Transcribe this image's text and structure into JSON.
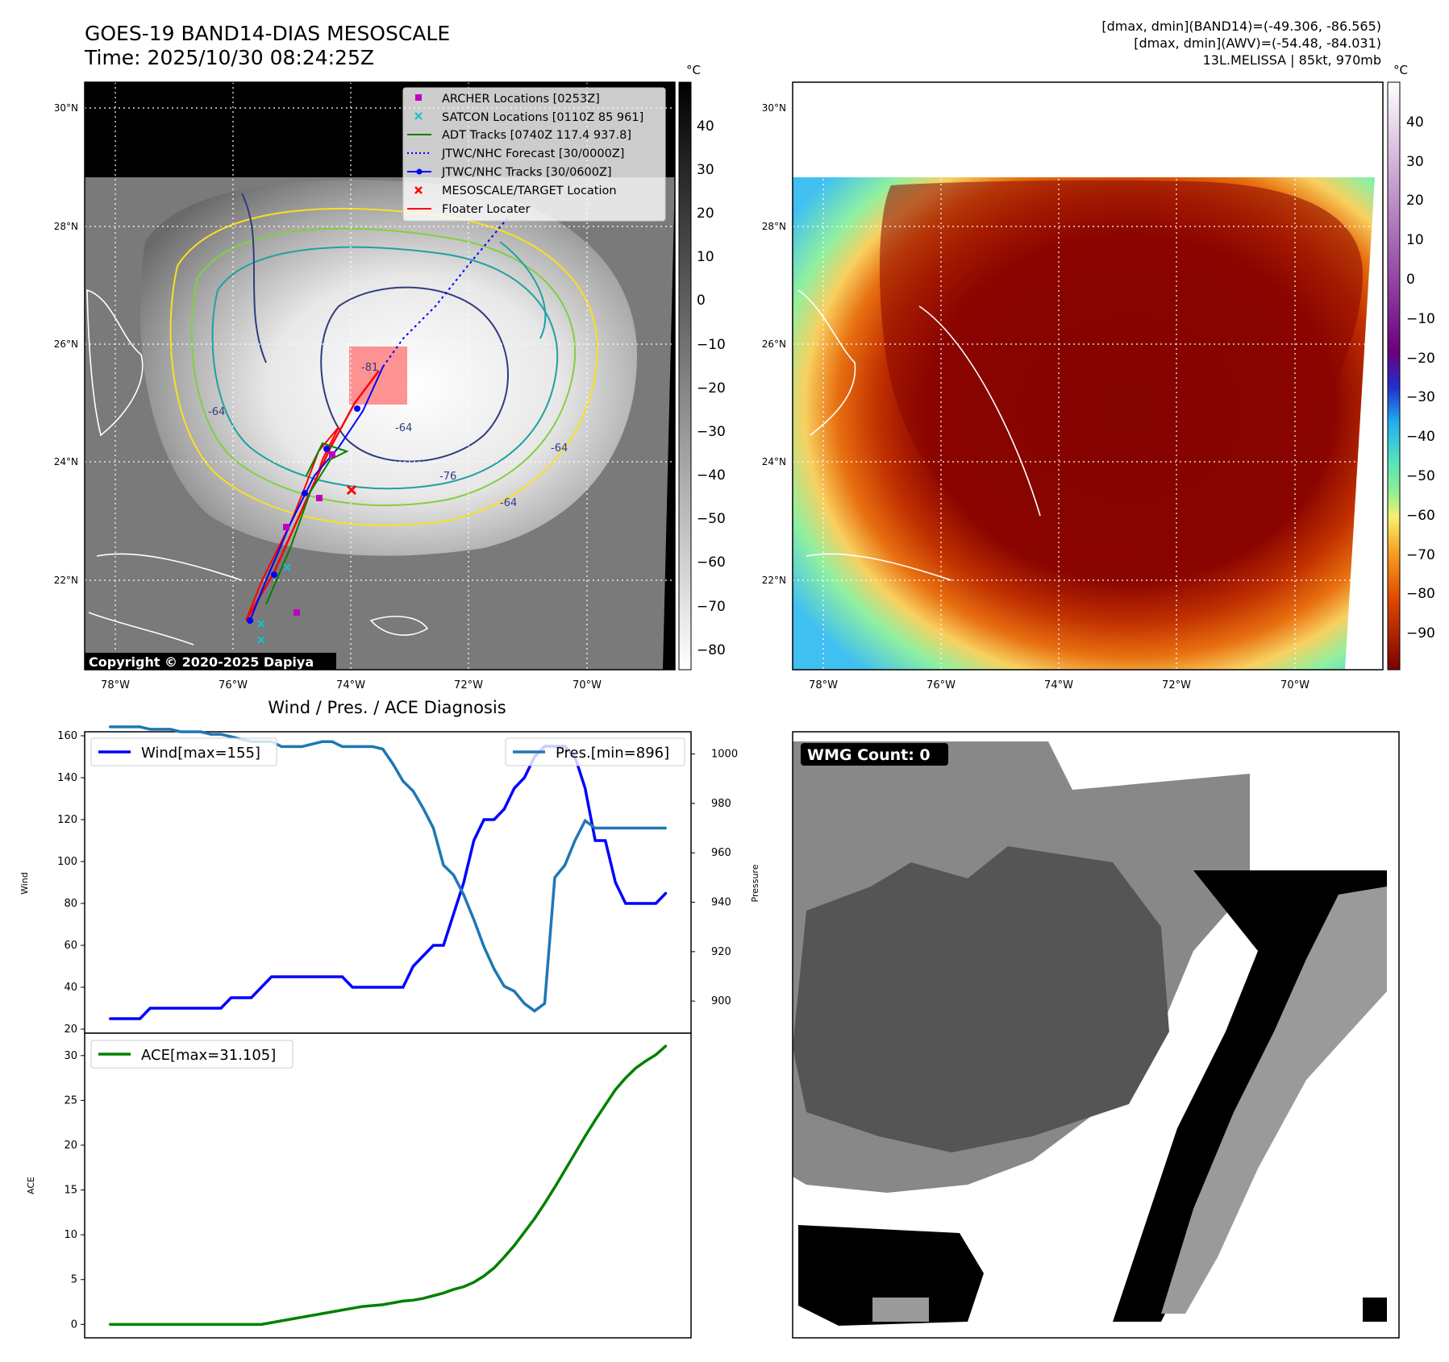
{
  "header": {
    "title_line1": "GOES-19 BAND14-DIAS MESOSCALE",
    "title_line2": "Time: 2025/10/30 08:24:25Z",
    "info_line1": "[dmax, dmin](BAND14)=(-49.306, -86.565)",
    "info_line2": "[dmax, dmin](AWV)=(-54.48, -84.031)",
    "info_line3": "13L.MELISSA | 85kt, 970mb"
  },
  "map_left": {
    "copyright": "Copyright © 2020-2025 Dapiya",
    "lat_labels": [
      "30°N",
      "28°N",
      "26°N",
      "24°N",
      "22°N"
    ],
    "lon_labels": [
      "78°W",
      "76°W",
      "74°W",
      "72°W",
      "70°W"
    ],
    "contour_labels": [
      "-81",
      "-64",
      "-64",
      "-64",
      "-76",
      "-64"
    ],
    "legend": [
      {
        "label": "ARCHER Locations [0253Z]",
        "color": "#bf00bf",
        "marker": "square"
      },
      {
        "label": "SATCON Locations [0110Z 85 961]",
        "color": "#17becf",
        "marker": "x"
      },
      {
        "label": "ADT Tracks [0740Z 117.4 937.8]",
        "color": "#008000",
        "marker": "line"
      },
      {
        "label": "JTWC/NHC Forecast [30/0000Z]",
        "color": "#0000ff",
        "marker": "dotted"
      },
      {
        "label": "JTWC/NHC Tracks [30/0600Z]",
        "color": "#0000ff",
        "marker": "line-dot"
      },
      {
        "label": "MESOSCALE/TARGET Location",
        "color": "#ff0000",
        "marker": "x"
      },
      {
        "label": "Floater Locater",
        "color": "#ff0000",
        "marker": "line"
      }
    ],
    "colorbar_unit": "°C",
    "colorbar_ticks": [
      "40",
      "30",
      "20",
      "10",
      "0",
      "−10",
      "−20",
      "−30",
      "−40",
      "−50",
      "−60",
      "−70",
      "−80"
    ]
  },
  "map_right": {
    "lat_labels": [
      "30°N",
      "28°N",
      "26°N",
      "24°N",
      "22°N"
    ],
    "lon_labels": [
      "78°W",
      "76°W",
      "74°W",
      "72°W",
      "70°W"
    ],
    "colorbar_unit": "°C",
    "colorbar_ticks": [
      "40",
      "30",
      "20",
      "10",
      "0",
      "−10",
      "−20",
      "−30",
      "−40",
      "−50",
      "−60",
      "−70",
      "−80",
      "−90"
    ]
  },
  "wmg": {
    "badge": "WMG Count: 0"
  },
  "colors": {
    "wind": "#0000ff",
    "pressure": "#1f77b4",
    "ace": "#008000",
    "adt": "#008000",
    "floater": "#ff0000",
    "archer": "#bf00bf",
    "satcon": "#17becf"
  },
  "chart_data": [
    {
      "type": "line",
      "title": "Wind / Pres. / ACE Diagnosis",
      "ylabel": "Wind",
      "y2label": "Pressure",
      "ylim": [
        20,
        160
      ],
      "y2lim": [
        887,
        1009
      ],
      "yticks": [
        20,
        40,
        60,
        80,
        100,
        120,
        140,
        160
      ],
      "y2ticks": [
        900,
        920,
        940,
        960,
        980,
        1000
      ],
      "x": [
        0,
        1,
        2,
        3,
        4,
        5,
        6,
        7,
        8,
        9,
        10,
        11,
        12,
        13,
        14,
        15,
        16,
        17,
        18,
        19,
        20,
        21,
        22,
        23,
        24,
        25,
        26,
        27,
        28,
        29,
        30,
        31,
        32,
        33,
        34,
        35,
        36,
        37,
        38,
        39,
        40,
        41,
        42,
        43,
        44,
        45,
        46,
        47,
        48,
        49,
        50,
        51,
        52,
        53,
        54,
        55
      ],
      "series": [
        {
          "name": "Wind[max=155]",
          "axis": "left",
          "values": [
            25,
            25,
            25,
            25,
            30,
            30,
            30,
            30,
            30,
            30,
            30,
            30,
            35,
            35,
            35,
            40,
            45,
            45,
            45,
            45,
            45,
            45,
            45,
            45,
            40,
            40,
            40,
            40,
            40,
            40,
            50,
            55,
            60,
            60,
            75,
            90,
            110,
            120,
            120,
            125,
            135,
            140,
            150,
            155,
            155,
            155,
            150,
            135,
            110,
            110,
            90,
            80,
            80,
            80,
            80,
            85
          ]
        },
        {
          "name": "Pres.[min=896]",
          "axis": "right",
          "values": [
            1011,
            1011,
            1011,
            1011,
            1010,
            1010,
            1010,
            1009,
            1009,
            1009,
            1008,
            1008,
            1007,
            1006,
            1005,
            1005,
            1005,
            1003,
            1003,
            1003,
            1004,
            1005,
            1005,
            1003,
            1003,
            1003,
            1003,
            1002,
            996,
            989,
            985,
            978,
            970,
            955,
            951,
            943,
            933,
            922,
            913,
            906,
            904,
            899,
            896,
            899,
            950,
            955,
            965,
            973,
            970,
            970,
            970,
            970,
            970,
            970,
            970,
            970
          ]
        }
      ]
    },
    {
      "type": "line",
      "ylabel": "ACE",
      "ylim": [
        -1.5,
        32.5
      ],
      "yticks": [
        0,
        5,
        10,
        15,
        20,
        25,
        30
      ],
      "series": [
        {
          "name": "ACE[max=31.105]",
          "values": [
            0,
            0,
            0,
            0,
            0,
            0,
            0,
            0,
            0,
            0,
            0,
            0,
            0,
            0,
            0,
            0,
            0.2,
            0.4,
            0.6,
            0.8,
            1.0,
            1.2,
            1.4,
            1.6,
            1.8,
            2.0,
            2.1,
            2.2,
            2.4,
            2.6,
            2.7,
            2.9,
            3.2,
            3.5,
            3.9,
            4.2,
            4.7,
            5.4,
            6.3,
            7.5,
            8.8,
            10.3,
            11.8,
            13.5,
            15.3,
            17.2,
            19.1,
            21.0,
            22.8,
            24.5,
            26.2,
            27.5,
            28.6,
            29.4,
            30.1,
            31.1
          ]
        }
      ]
    }
  ]
}
